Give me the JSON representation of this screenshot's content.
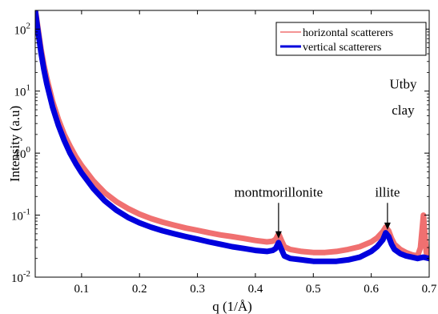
{
  "chart_data": {
    "type": "line",
    "title": "",
    "xlabel": "q (1/Å)",
    "ylabel": "Intensity (a.u)",
    "xlim": [
      0.02,
      0.7
    ],
    "ylim": [
      0.01,
      200
    ],
    "yscale": "log",
    "grid": false,
    "legend_position": "top-right",
    "x_ticks": [
      0.1,
      0.2,
      0.3,
      0.4,
      0.5,
      0.6,
      0.7
    ],
    "x_tick_labels": [
      "0.1",
      "0.2",
      "0.3",
      "0.4",
      "0.5",
      "0.6",
      "0.7"
    ],
    "y_ticks": [
      0.01,
      0.1,
      1,
      10,
      100
    ],
    "y_tick_labels": [
      {
        "base": "10",
        "exp": "-2"
      },
      {
        "base": "10",
        "exp": "-1"
      },
      {
        "base": "10",
        "exp": "0"
      },
      {
        "base": "10",
        "exp": "1"
      },
      {
        "base": "10",
        "exp": "2"
      }
    ],
    "series": [
      {
        "name": "vertical scatterers",
        "color": "#0000dd",
        "x": [
          0.02,
          0.025,
          0.03,
          0.035,
          0.04,
          0.05,
          0.06,
          0.07,
          0.08,
          0.09,
          0.1,
          0.12,
          0.14,
          0.16,
          0.18,
          0.2,
          0.22,
          0.24,
          0.26,
          0.28,
          0.3,
          0.32,
          0.34,
          0.36,
          0.38,
          0.4,
          0.42,
          0.43,
          0.435,
          0.44,
          0.445,
          0.45,
          0.46,
          0.48,
          0.5,
          0.52,
          0.54,
          0.56,
          0.58,
          0.6,
          0.61,
          0.62,
          0.625,
          0.63,
          0.635,
          0.64,
          0.65,
          0.66,
          0.67,
          0.68,
          0.69,
          0.7
        ],
        "y": [
          200,
          90,
          42,
          22,
          13,
          5.5,
          2.8,
          1.6,
          1.0,
          0.68,
          0.48,
          0.27,
          0.17,
          0.12,
          0.092,
          0.075,
          0.064,
          0.056,
          0.05,
          0.045,
          0.041,
          0.037,
          0.034,
          0.031,
          0.029,
          0.027,
          0.026,
          0.027,
          0.029,
          0.036,
          0.028,
          0.022,
          0.02,
          0.019,
          0.018,
          0.018,
          0.018,
          0.019,
          0.021,
          0.026,
          0.031,
          0.04,
          0.052,
          0.045,
          0.034,
          0.028,
          0.024,
          0.022,
          0.021,
          0.02,
          0.021,
          0.02
        ]
      },
      {
        "name": "horizontal scatterers",
        "color": "#f07070",
        "x": [
          0.02,
          0.025,
          0.03,
          0.035,
          0.04,
          0.05,
          0.06,
          0.07,
          0.08,
          0.09,
          0.1,
          0.12,
          0.14,
          0.16,
          0.18,
          0.2,
          0.22,
          0.24,
          0.26,
          0.28,
          0.3,
          0.32,
          0.34,
          0.36,
          0.38,
          0.4,
          0.42,
          0.43,
          0.435,
          0.44,
          0.445,
          0.45,
          0.46,
          0.48,
          0.5,
          0.52,
          0.54,
          0.56,
          0.58,
          0.6,
          0.61,
          0.62,
          0.625,
          0.63,
          0.635,
          0.64,
          0.65,
          0.66,
          0.67,
          0.68,
          0.685,
          0.69,
          0.695,
          0.7
        ],
        "y": [
          210,
          100,
          48,
          26,
          16,
          6.8,
          3.5,
          2.0,
          1.3,
          0.88,
          0.63,
          0.36,
          0.23,
          0.165,
          0.128,
          0.104,
          0.088,
          0.077,
          0.069,
          0.062,
          0.057,
          0.052,
          0.048,
          0.045,
          0.042,
          0.039,
          0.037,
          0.038,
          0.041,
          0.05,
          0.039,
          0.031,
          0.028,
          0.026,
          0.025,
          0.025,
          0.026,
          0.028,
          0.031,
          0.037,
          0.043,
          0.054,
          0.064,
          0.056,
          0.042,
          0.034,
          0.028,
          0.025,
          0.023,
          0.022,
          0.03,
          0.1,
          0.025,
          0.02
        ]
      }
    ],
    "annotations": [
      {
        "text": "montmorillonite",
        "x": 0.44,
        "y": 0.042,
        "text_x": 0.44,
        "text_y": 0.2
      },
      {
        "text": "illite",
        "x": 0.628,
        "y": 0.058,
        "text_x": 0.628,
        "text_y": 0.2
      },
      {
        "text": "Utby",
        "x": 0.655,
        "y": 11
      },
      {
        "text": "clay",
        "x": 0.655,
        "y": 4.2
      }
    ]
  }
}
